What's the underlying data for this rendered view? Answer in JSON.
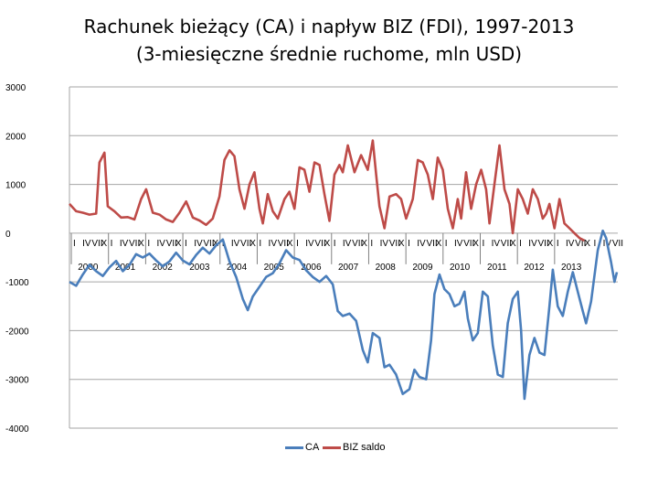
{
  "title_line1": "Rachunek bieżący (CA) i napływ BIZ (FDI), 1997-2013",
  "title_line2": "(3-miesięczne średnie ruchome, mln USD)",
  "legend": [
    {
      "label": "CA",
      "color": "#4a7ebb"
    },
    {
      "label": "BIZ saldo",
      "color": "#be4b48"
    }
  ],
  "chart_data": {
    "type": "line",
    "title": "Rachunek bieżący (CA) i napływ BIZ (FDI), 1997-2013",
    "subtitle": "(3-miesięczne średnie ruchome, mln USD)",
    "ylim": [
      -4000,
      3000
    ],
    "yticks": [
      "3000",
      "2000",
      "1000",
      "0",
      "-1000",
      "-2000",
      "-3000",
      "-4000"
    ],
    "grid": true,
    "legend_position": "bottom",
    "month_labels": [
      "I",
      "IV",
      "VII",
      "X"
    ],
    "year_labels": [
      "2000",
      "2001",
      "2002",
      "2003",
      "2004",
      "2005",
      "2006",
      "2007",
      "2008",
      "2009",
      "2010",
      "2011",
      "2012",
      "2013"
    ],
    "x_start": 1999.0,
    "x_end": 2013.75,
    "series": [
      {
        "name": "CA",
        "color": "#4a7ebb",
        "points": [
          [
            1999.0,
            -1000
          ],
          [
            1999.2,
            -1080
          ],
          [
            1999.4,
            -850
          ],
          [
            1999.6,
            -650
          ],
          [
            1999.8,
            -780
          ],
          [
            2000.0,
            -880
          ],
          [
            2000.2,
            -700
          ],
          [
            2000.4,
            -570
          ],
          [
            2000.6,
            -780
          ],
          [
            2000.8,
            -650
          ],
          [
            2001.0,
            -430
          ],
          [
            2001.2,
            -500
          ],
          [
            2001.4,
            -420
          ],
          [
            2001.6,
            -560
          ],
          [
            2001.8,
            -680
          ],
          [
            2002.0,
            -580
          ],
          [
            2002.2,
            -400
          ],
          [
            2002.4,
            -560
          ],
          [
            2002.6,
            -640
          ],
          [
            2002.8,
            -450
          ],
          [
            2003.0,
            -300
          ],
          [
            2003.2,
            -420
          ],
          [
            2003.4,
            -250
          ],
          [
            2003.6,
            -130
          ],
          [
            2003.8,
            -580
          ],
          [
            2004.0,
            -900
          ],
          [
            2004.2,
            -1350
          ],
          [
            2004.35,
            -1580
          ],
          [
            2004.5,
            -1300
          ],
          [
            2004.7,
            -1100
          ],
          [
            2004.9,
            -900
          ],
          [
            2005.1,
            -820
          ],
          [
            2005.3,
            -620
          ],
          [
            2005.5,
            -350
          ],
          [
            2005.7,
            -500
          ],
          [
            2005.9,
            -550
          ],
          [
            2006.1,
            -760
          ],
          [
            2006.3,
            -900
          ],
          [
            2006.5,
            -1000
          ],
          [
            2006.7,
            -880
          ],
          [
            2006.9,
            -1050
          ],
          [
            2007.05,
            -1600
          ],
          [
            2007.2,
            -1700
          ],
          [
            2007.4,
            -1650
          ],
          [
            2007.6,
            -1800
          ],
          [
            2007.8,
            -2400
          ],
          [
            2007.95,
            -2650
          ],
          [
            2008.1,
            -2050
          ],
          [
            2008.3,
            -2150
          ],
          [
            2008.45,
            -2750
          ],
          [
            2008.6,
            -2700
          ],
          [
            2008.8,
            -2900
          ],
          [
            2009.0,
            -3300
          ],
          [
            2009.2,
            -3200
          ],
          [
            2009.35,
            -2800
          ],
          [
            2009.5,
            -2950
          ],
          [
            2009.7,
            -3000
          ],
          [
            2009.85,
            -2200
          ],
          [
            2009.95,
            -1250
          ],
          [
            2010.1,
            -850
          ],
          [
            2010.25,
            -1150
          ],
          [
            2010.4,
            -1250
          ],
          [
            2010.55,
            -1500
          ],
          [
            2010.7,
            -1450
          ],
          [
            2010.85,
            -1200
          ],
          [
            2010.95,
            -1750
          ],
          [
            2011.1,
            -2200
          ],
          [
            2011.25,
            -2050
          ],
          [
            2011.4,
            -1200
          ],
          [
            2011.55,
            -1300
          ],
          [
            2011.7,
            -2300
          ],
          [
            2011.85,
            -2900
          ],
          [
            2012.0,
            -2950
          ],
          [
            2012.15,
            -1850
          ],
          [
            2012.3,
            -1350
          ],
          [
            2012.45,
            -1200
          ],
          [
            2012.55,
            -2000
          ],
          [
            2012.65,
            -3400
          ],
          [
            2012.8,
            -2500
          ],
          [
            2012.95,
            -2150
          ],
          [
            2013.1,
            -2450
          ],
          [
            2013.25,
            -2500
          ],
          [
            2013.4,
            -1500
          ],
          [
            2013.5,
            -750
          ],
          [
            2013.65,
            -1500
          ],
          [
            2013.8,
            -1700
          ],
          [
            2013.95,
            -1200
          ],
          [
            2014.1,
            -800
          ],
          [
            2014.25,
            -1200
          ],
          [
            2014.4,
            -1600
          ],
          [
            2014.5,
            -1850
          ],
          [
            2014.65,
            -1400
          ],
          [
            2014.85,
            -350
          ],
          [
            2015.0,
            50
          ],
          [
            2015.1,
            -100
          ],
          [
            2015.25,
            -600
          ],
          [
            2015.35,
            -1000
          ],
          [
            2015.45,
            -800
          ]
        ]
      },
      {
        "name": "BIZ saldo",
        "color": "#be4b48",
        "points": [
          [
            1999.0,
            600
          ],
          [
            1999.2,
            450
          ],
          [
            1999.4,
            420
          ],
          [
            1999.6,
            380
          ],
          [
            1999.8,
            400
          ],
          [
            1999.9,
            1450
          ],
          [
            2000.05,
            1650
          ],
          [
            2000.15,
            550
          ],
          [
            2000.35,
            450
          ],
          [
            2000.55,
            320
          ],
          [
            2000.75,
            330
          ],
          [
            2000.95,
            280
          ],
          [
            2001.15,
            700
          ],
          [
            2001.3,
            900
          ],
          [
            2001.5,
            420
          ],
          [
            2001.7,
            380
          ],
          [
            2001.9,
            280
          ],
          [
            2002.1,
            230
          ],
          [
            2002.3,
            420
          ],
          [
            2002.5,
            650
          ],
          [
            2002.7,
            320
          ],
          [
            2002.9,
            260
          ],
          [
            2003.1,
            170
          ],
          [
            2003.3,
            300
          ],
          [
            2003.5,
            750
          ],
          [
            2003.65,
            1500
          ],
          [
            2003.8,
            1700
          ],
          [
            2003.95,
            1580
          ],
          [
            2004.1,
            900
          ],
          [
            2004.25,
            500
          ],
          [
            2004.4,
            1000
          ],
          [
            2004.55,
            1250
          ],
          [
            2004.7,
            500
          ],
          [
            2004.8,
            200
          ],
          [
            2004.95,
            800
          ],
          [
            2005.1,
            450
          ],
          [
            2005.25,
            300
          ],
          [
            2005.45,
            700
          ],
          [
            2005.6,
            850
          ],
          [
            2005.75,
            500
          ],
          [
            2005.9,
            1350
          ],
          [
            2006.05,
            1300
          ],
          [
            2006.2,
            850
          ],
          [
            2006.35,
            1450
          ],
          [
            2006.5,
            1400
          ],
          [
            2006.65,
            800
          ],
          [
            2006.8,
            250
          ],
          [
            2006.95,
            1200
          ],
          [
            2007.1,
            1400
          ],
          [
            2007.2,
            1250
          ],
          [
            2007.35,
            1800
          ],
          [
            2007.55,
            1250
          ],
          [
            2007.75,
            1600
          ],
          [
            2007.95,
            1300
          ],
          [
            2008.1,
            1900
          ],
          [
            2008.2,
            1200
          ],
          [
            2008.3,
            550
          ],
          [
            2008.45,
            100
          ],
          [
            2008.6,
            750
          ],
          [
            2008.8,
            800
          ],
          [
            2008.95,
            700
          ],
          [
            2009.1,
            300
          ],
          [
            2009.3,
            700
          ],
          [
            2009.45,
            1500
          ],
          [
            2009.6,
            1450
          ],
          [
            2009.75,
            1200
          ],
          [
            2009.9,
            700
          ],
          [
            2010.05,
            1550
          ],
          [
            2010.2,
            1300
          ],
          [
            2010.35,
            500
          ],
          [
            2010.5,
            100
          ],
          [
            2010.65,
            700
          ],
          [
            2010.75,
            300
          ],
          [
            2010.9,
            1250
          ],
          [
            2011.05,
            500
          ],
          [
            2011.2,
            1000
          ],
          [
            2011.35,
            1300
          ],
          [
            2011.5,
            900
          ],
          [
            2011.6,
            200
          ],
          [
            2011.75,
            1000
          ],
          [
            2011.9,
            1800
          ],
          [
            2012.05,
            900
          ],
          [
            2012.2,
            600
          ],
          [
            2012.3,
            0
          ],
          [
            2012.45,
            900
          ],
          [
            2012.6,
            700
          ],
          [
            2012.75,
            400
          ],
          [
            2012.9,
            900
          ],
          [
            2013.05,
            700
          ],
          [
            2013.2,
            300
          ],
          [
            2013.3,
            400
          ],
          [
            2013.4,
            600
          ],
          [
            2013.55,
            100
          ],
          [
            2013.7,
            700
          ],
          [
            2013.85,
            200
          ],
          [
            2014.0,
            100
          ],
          [
            2014.15,
            0
          ],
          [
            2014.3,
            -100
          ],
          [
            2014.45,
            -150
          ]
        ]
      }
    ]
  }
}
